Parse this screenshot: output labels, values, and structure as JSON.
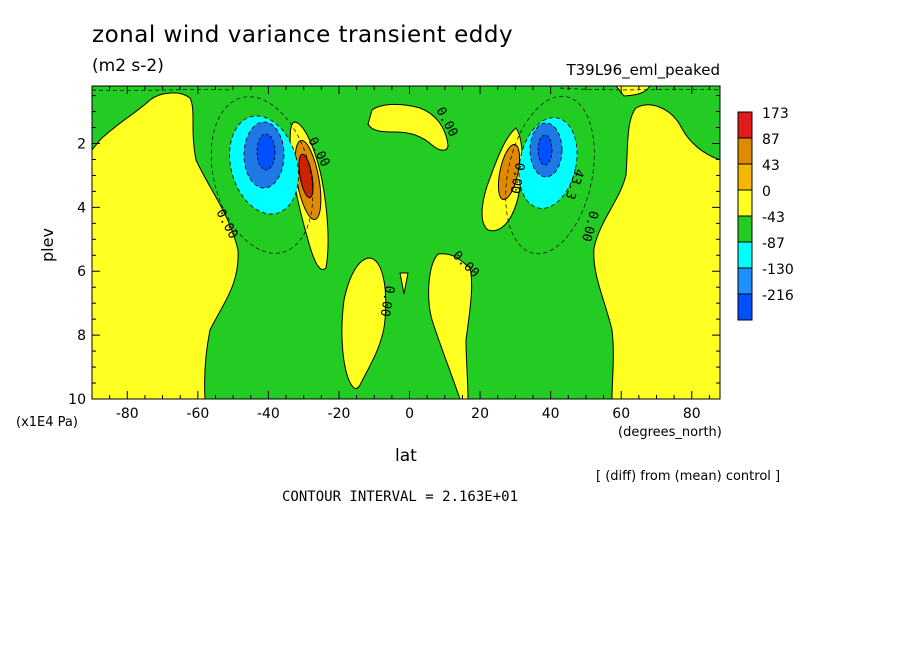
{
  "chart_data": {
    "type": "heatmap",
    "title": "zonal wind variance transient eddy",
    "units": "(m2 s-2)",
    "experiment": "T39L96_eml_peaked",
    "xlabel": "lat",
    "xunit": "(degrees_north)",
    "ylabel": "plev",
    "yunit": "(x1E4 Pa)",
    "x_ticks": [
      "-80",
      "-60",
      "-40",
      "-20",
      "0",
      "20",
      "40",
      "60",
      "80"
    ],
    "y_ticks": [
      "2",
      "4",
      "6",
      "8",
      "10"
    ],
    "xlim": [
      -90,
      88
    ],
    "ylim": [
      10,
      0.2
    ],
    "legend": {
      "labels": [
        "173",
        "87",
        "43",
        "0",
        "-43",
        "-87",
        "-130",
        "-216"
      ],
      "colors": [
        "#e31a1c",
        "#e08a00",
        "#f5b800",
        "#ffff22",
        "#22cc22",
        "#00ffff",
        "#1e90ff",
        "#0050ff"
      ]
    },
    "contour_labels": [
      "0.00",
      "0.00",
      "0.00",
      "0.00",
      "0.00",
      "0.00",
      "0.00",
      "0.00",
      "43.3"
    ],
    "note": "[ (diff) from (mean) control ]",
    "contour_interval": "CONTOUR INTERVAL = 2.163E+01",
    "colors": {
      "positive": "#ffff22",
      "negative": "#22cc22",
      "peak_positive": "#cc2200",
      "peak_negative": "#1e78e6"
    }
  }
}
